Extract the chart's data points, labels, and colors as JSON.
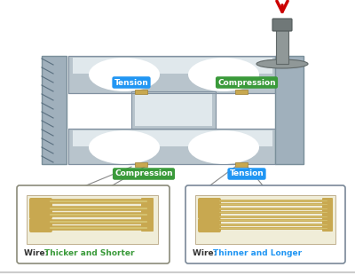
{
  "bg_color": "#ffffff",
  "beam_color": "#b8c4cc",
  "beam_light": "#cdd8de",
  "beam_highlight": "#e0e8ec",
  "wall_color": "#a0b0bc",
  "gold_color": "#c8a850",
  "gold_dark": "#a08030",
  "strain_bg": "#f0edd8",
  "red_arrow": "#cc0000",
  "bolt_color": "#909898",
  "bolt_dark": "#707878",
  "tension_color": "#2196F3",
  "compression_color": "#3a9a3a",
  "wire_label_color": "#333333",
  "wire_tension_color": "#2196F3",
  "wire_compression_color": "#3a9a3a",
  "tension_label": "Tension",
  "compression_label": "Compression",
  "wire_left_desc": "Thicker and Shorter",
  "wire_right_desc": "Thinner and Longer",
  "line_color": "#555555"
}
